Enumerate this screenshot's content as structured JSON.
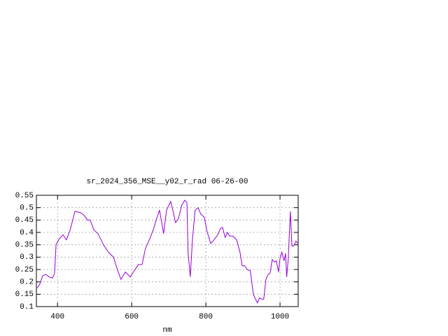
{
  "chart_data": {
    "type": "line",
    "title": "sr_2024_356_MSE__y02_r_rad 06-26-00",
    "x_label": "nm",
    "x": [
      345,
      352,
      360,
      369,
      377,
      386,
      392,
      396,
      405,
      415,
      424,
      434,
      447,
      462,
      471,
      481,
      488,
      498,
      509,
      524,
      537,
      551,
      560,
      571,
      583,
      596,
      609,
      618,
      628,
      637,
      649,
      658,
      666,
      675,
      681,
      686,
      694,
      705,
      711,
      718,
      726,
      735,
      743,
      749,
      752,
      758,
      764,
      771,
      779,
      786,
      796,
      803,
      813,
      822,
      832,
      839,
      845,
      852,
      858,
      864,
      873,
      883,
      892,
      898,
      905,
      911,
      920,
      928,
      934,
      939,
      945,
      951,
      956,
      962,
      968,
      973,
      979,
      985,
      990,
      996,
      1000,
      1005,
      1011,
      1015,
      1018,
      1022,
      1028,
      1032,
      1037,
      1043,
      1049
    ],
    "series": [
      {
        "color": "#9400d3",
        "values": [
          0.175,
          0.19,
          0.225,
          0.23,
          0.22,
          0.215,
          0.235,
          0.35,
          0.375,
          0.39,
          0.37,
          0.41,
          0.485,
          0.48,
          0.47,
          0.45,
          0.45,
          0.41,
          0.395,
          0.35,
          0.32,
          0.3,
          0.255,
          0.21,
          0.24,
          0.22,
          0.25,
          0.27,
          0.27,
          0.335,
          0.375,
          0.41,
          0.45,
          0.49,
          0.44,
          0.395,
          0.49,
          0.525,
          0.49,
          0.44,
          0.455,
          0.51,
          0.53,
          0.52,
          0.32,
          0.22,
          0.375,
          0.49,
          0.5,
          0.475,
          0.46,
          0.405,
          0.355,
          0.37,
          0.39,
          0.415,
          0.42,
          0.38,
          0.4,
          0.385,
          0.385,
          0.37,
          0.32,
          0.265,
          0.265,
          0.25,
          0.245,
          0.15,
          0.13,
          0.115,
          0.135,
          0.13,
          0.13,
          0.21,
          0.23,
          0.235,
          0.29,
          0.28,
          0.285,
          0.24,
          0.295,
          0.32,
          0.285,
          0.315,
          0.22,
          0.29,
          0.485,
          0.345,
          0.345,
          0.365,
          0.355
        ]
      }
    ],
    "xlim": [
      343,
      1049
    ],
    "xticks": [
      400,
      600,
      800,
      1000
    ],
    "ylim": [
      0.1,
      0.55
    ],
    "yticks": [
      0.1,
      0.15,
      0.2,
      0.25,
      0.3,
      0.35,
      0.4,
      0.45,
      0.5,
      0.55
    ],
    "grid": true
  }
}
